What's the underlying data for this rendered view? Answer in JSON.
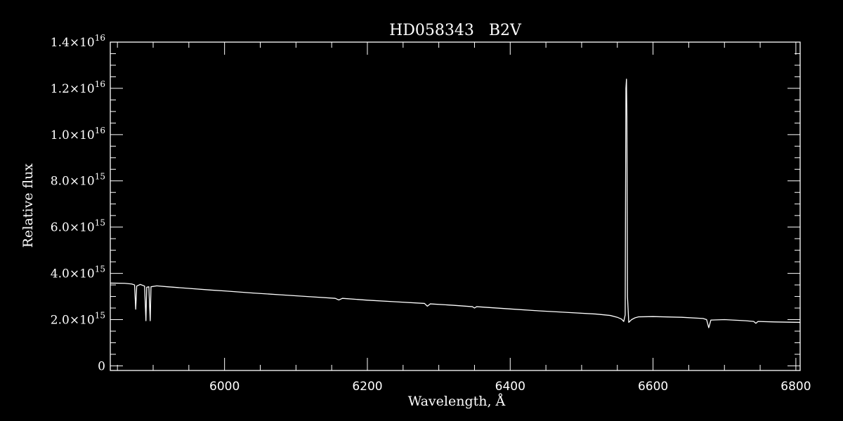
{
  "chart_data": {
    "type": "line",
    "title": "HD058343   B2V",
    "xlabel": "Wavelength, Å",
    "ylabel": "Relative flux",
    "xlim": [
      5840,
      6806
    ],
    "ylim": [
      -200000000000000.0,
      1.4e+16
    ],
    "x_ticks": [
      {
        "value": 6000,
        "label": "6000"
      },
      {
        "value": 6200,
        "label": "6200"
      },
      {
        "value": 6400,
        "label": "6400"
      },
      {
        "value": 6600,
        "label": "6600"
      },
      {
        "value": 6800,
        "label": "6800"
      }
    ],
    "y_ticks": [
      {
        "value": 0,
        "mantissa": "0",
        "exp": ""
      },
      {
        "value": 2000000000000000.0,
        "mantissa": "2.0×10",
        "exp": "15"
      },
      {
        "value": 4000000000000000.0,
        "mantissa": "4.0×10",
        "exp": "15"
      },
      {
        "value": 6000000000000000.0,
        "mantissa": "6.0×10",
        "exp": "15"
      },
      {
        "value": 8000000000000000.0,
        "mantissa": "8.0×10",
        "exp": "15"
      },
      {
        "value": 1e+16,
        "mantissa": "1.0×10",
        "exp": "16"
      },
      {
        "value": 1.2e+16,
        "mantissa": "1.2×10",
        "exp": "16"
      },
      {
        "value": 1.4e+16,
        "mantissa": "1.4×10",
        "exp": "16"
      }
    ],
    "x_minor_step": 50,
    "y_minor_step": 500000000000000.0,
    "grid": false,
    "series": [
      {
        "color": "#ffffff",
        "points": [
          [
            5840,
            3580000000000000.0
          ],
          [
            5860,
            3570000000000000.0
          ],
          [
            5870,
            3540000000000000.0
          ],
          [
            5874,
            3500000000000000.0
          ],
          [
            5875.6,
            2450000000000000.0
          ],
          [
            5877,
            3450000000000000.0
          ],
          [
            5882,
            3520000000000000.0
          ],
          [
            5888,
            3450000000000000.0
          ],
          [
            5889.9,
            1950000000000000.0
          ],
          [
            5891,
            3400000000000000.0
          ],
          [
            5894,
            3420000000000000.0
          ],
          [
            5895.9,
            1950000000000000.0
          ],
          [
            5897,
            3420000000000000.0
          ],
          [
            5905,
            3460000000000000.0
          ],
          [
            5920,
            3420000000000000.0
          ],
          [
            5950,
            3350000000000000.0
          ],
          [
            5980,
            3280000000000000.0
          ],
          [
            6000,
            3240000000000000.0
          ],
          [
            6040,
            3150000000000000.0
          ],
          [
            6080,
            3070000000000000.0
          ],
          [
            6120,
            2990000000000000.0
          ],
          [
            6155,
            2920000000000000.0
          ],
          [
            6160,
            2850000000000000.0
          ],
          [
            6165,
            2920000000000000.0
          ],
          [
            6200,
            2840000000000000.0
          ],
          [
            6240,
            2770000000000000.0
          ],
          [
            6280,
            2700000000000000.0
          ],
          [
            6284,
            2580000000000000.0
          ],
          [
            6288,
            2680000000000000.0
          ],
          [
            6320,
            2620000000000000.0
          ],
          [
            6347,
            2560000000000000.0
          ],
          [
            6350,
            2500000000000000.0
          ],
          [
            6353,
            2560000000000000.0
          ],
          [
            6400,
            2460000000000000.0
          ],
          [
            6440,
            2380000000000000.0
          ],
          [
            6480,
            2310000000000000.0
          ],
          [
            6520,
            2240000000000000.0
          ],
          [
            6540,
            2180000000000000.0
          ],
          [
            6550,
            2100000000000000.0
          ],
          [
            6556,
            2020000000000000.0
          ],
          [
            6559,
            1920000000000000.0
          ],
          [
            6561,
            2200000000000000.0
          ],
          [
            6562.0,
            1.2e+16
          ],
          [
            6562.8,
            1.24e+16
          ],
          [
            6563.4,
            1.08e+16
          ],
          [
            6564.2,
            3000000000000000.0
          ],
          [
            6566,
            1880000000000000.0
          ],
          [
            6570,
            2000000000000000.0
          ],
          [
            6575,
            2080000000000000.0
          ],
          [
            6580,
            2120000000000000.0
          ],
          [
            6600,
            2130000000000000.0
          ],
          [
            6640,
            2100000000000000.0
          ],
          [
            6670,
            2050000000000000.0
          ],
          [
            6675,
            2000000000000000.0
          ],
          [
            6678,
            1650000000000000.0
          ],
          [
            6681,
            1980000000000000.0
          ],
          [
            6700,
            2000000000000000.0
          ],
          [
            6730,
            1950000000000000.0
          ],
          [
            6741,
            1920000000000000.0
          ],
          [
            6744,
            1840000000000000.0
          ],
          [
            6747,
            1920000000000000.0
          ],
          [
            6770,
            1900000000000000.0
          ],
          [
            6806,
            1880000000000000.0
          ]
        ]
      }
    ]
  }
}
